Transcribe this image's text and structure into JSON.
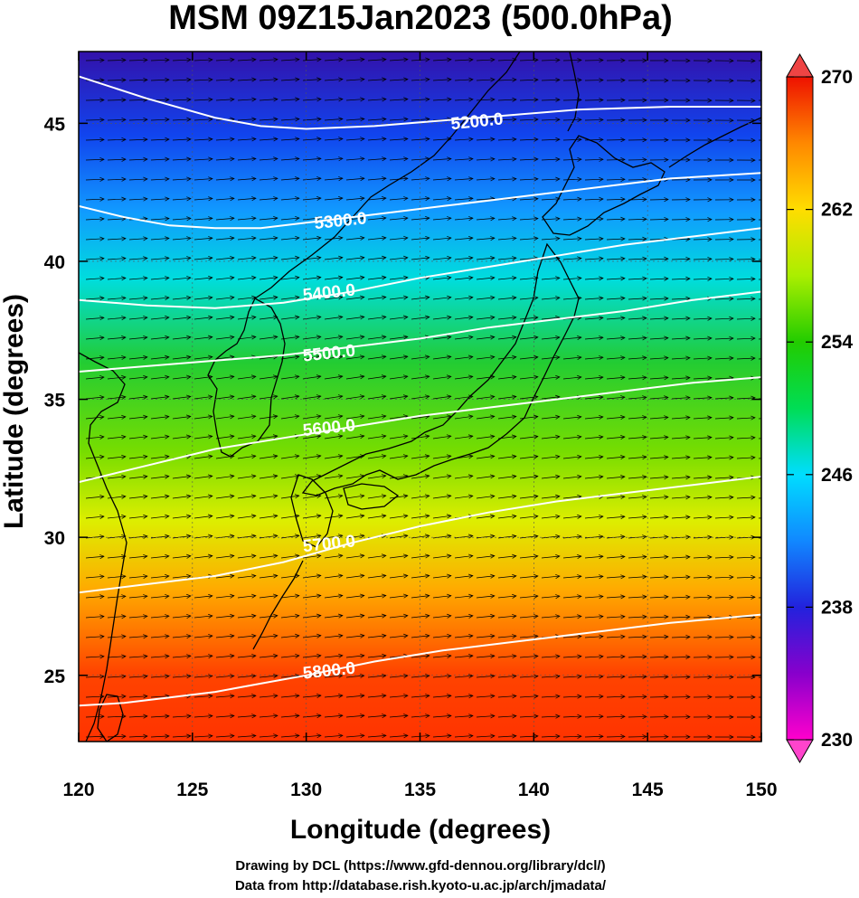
{
  "chart_data": {
    "type": "heatmap",
    "title": "MSM 09Z15Jan2023 (500.0hPa)",
    "xlabel": "Longitude (degrees)",
    "ylabel": "Latitude  (degrees)",
    "xlim": [
      120,
      150
    ],
    "ylim": [
      22.6,
      47.6
    ],
    "x_ticks": [
      "120",
      "125",
      "130",
      "135",
      "140",
      "145",
      "150"
    ],
    "y_ticks": [
      "25",
      "30",
      "35",
      "40",
      "45"
    ],
    "colorbar": {
      "min": 230,
      "max": 270,
      "ticks": [
        "230",
        "238",
        "246",
        "254",
        "262",
        "270"
      ],
      "extend": "both",
      "colors": [
        "#ff00cc",
        "#8800cc",
        "#2222dd",
        "#1188ff",
        "#00ddff",
        "#00dd55",
        "#22cc00",
        "#aaee00",
        "#ffdd00",
        "#ff8800",
        "#ee1100"
      ]
    },
    "contours": [
      {
        "label": "5200.0",
        "lon": [
          120,
          123,
          126,
          128,
          130,
          133,
          136,
          139,
          142,
          146,
          150
        ],
        "lat": [
          46.7,
          45.9,
          45.2,
          44.9,
          44.8,
          44.9,
          45.1,
          45.3,
          45.5,
          45.6,
          45.6
        ],
        "label_lon": 137.5,
        "label_lat": 45.1
      },
      {
        "label": "5300.0",
        "lon": [
          120,
          122,
          124,
          126,
          128,
          130,
          133,
          136,
          139,
          142,
          146,
          150
        ],
        "lat": [
          42.0,
          41.6,
          41.3,
          41.2,
          41.2,
          41.4,
          41.7,
          42.0,
          42.3,
          42.6,
          43.0,
          43.2
        ],
        "label_lon": 131.5,
        "label_lat": 41.5
      },
      {
        "label": "5400.0",
        "lon": [
          120,
          123,
          126,
          129,
          132,
          135,
          138,
          141,
          144,
          147,
          150
        ],
        "lat": [
          38.6,
          38.4,
          38.3,
          38.5,
          38.9,
          39.4,
          39.8,
          40.2,
          40.6,
          40.9,
          41.2
        ],
        "label_lon": 131.0,
        "label_lat": 38.9
      },
      {
        "label": "5500.0",
        "lon": [
          120,
          123,
          126,
          129,
          132,
          135,
          138,
          141,
          144,
          147,
          150
        ],
        "lat": [
          36.0,
          36.2,
          36.4,
          36.6,
          36.9,
          37.2,
          37.6,
          37.9,
          38.2,
          38.6,
          38.9
        ],
        "label_lon": 131.0,
        "label_lat": 36.7
      },
      {
        "label": "5600.0",
        "lon": [
          120,
          123,
          126,
          129,
          132,
          135,
          138,
          141,
          144,
          147,
          150
        ],
        "lat": [
          32.0,
          32.6,
          33.2,
          33.6,
          34.0,
          34.4,
          34.7,
          35.0,
          35.3,
          35.6,
          35.8
        ],
        "label_lon": 131.0,
        "label_lat": 34.0
      },
      {
        "label": "5700.0",
        "lon": [
          120,
          123,
          126,
          129,
          132,
          135,
          138,
          141,
          144,
          147,
          150
        ],
        "lat": [
          28.0,
          28.3,
          28.6,
          29.1,
          29.8,
          30.4,
          30.9,
          31.3,
          31.6,
          31.9,
          32.2
        ],
        "label_lon": 131.0,
        "label_lat": 29.8
      },
      {
        "label": "5800.0",
        "lon": [
          120,
          122,
          124,
          126,
          128,
          130,
          133,
          136,
          139,
          142,
          146,
          150
        ],
        "lat": [
          23.9,
          24.0,
          24.2,
          24.4,
          24.7,
          25.0,
          25.5,
          25.9,
          26.2,
          26.5,
          26.9,
          27.2
        ],
        "label_lon": 131.0,
        "label_lat": 25.2
      }
    ]
  },
  "credits": {
    "line1": "Drawing by DCL (https://www.gfd-dennou.org/library/dcl/)",
    "line2": "Data from http://database.rish.kyoto-u.ac.jp/arch/jmadata/"
  }
}
